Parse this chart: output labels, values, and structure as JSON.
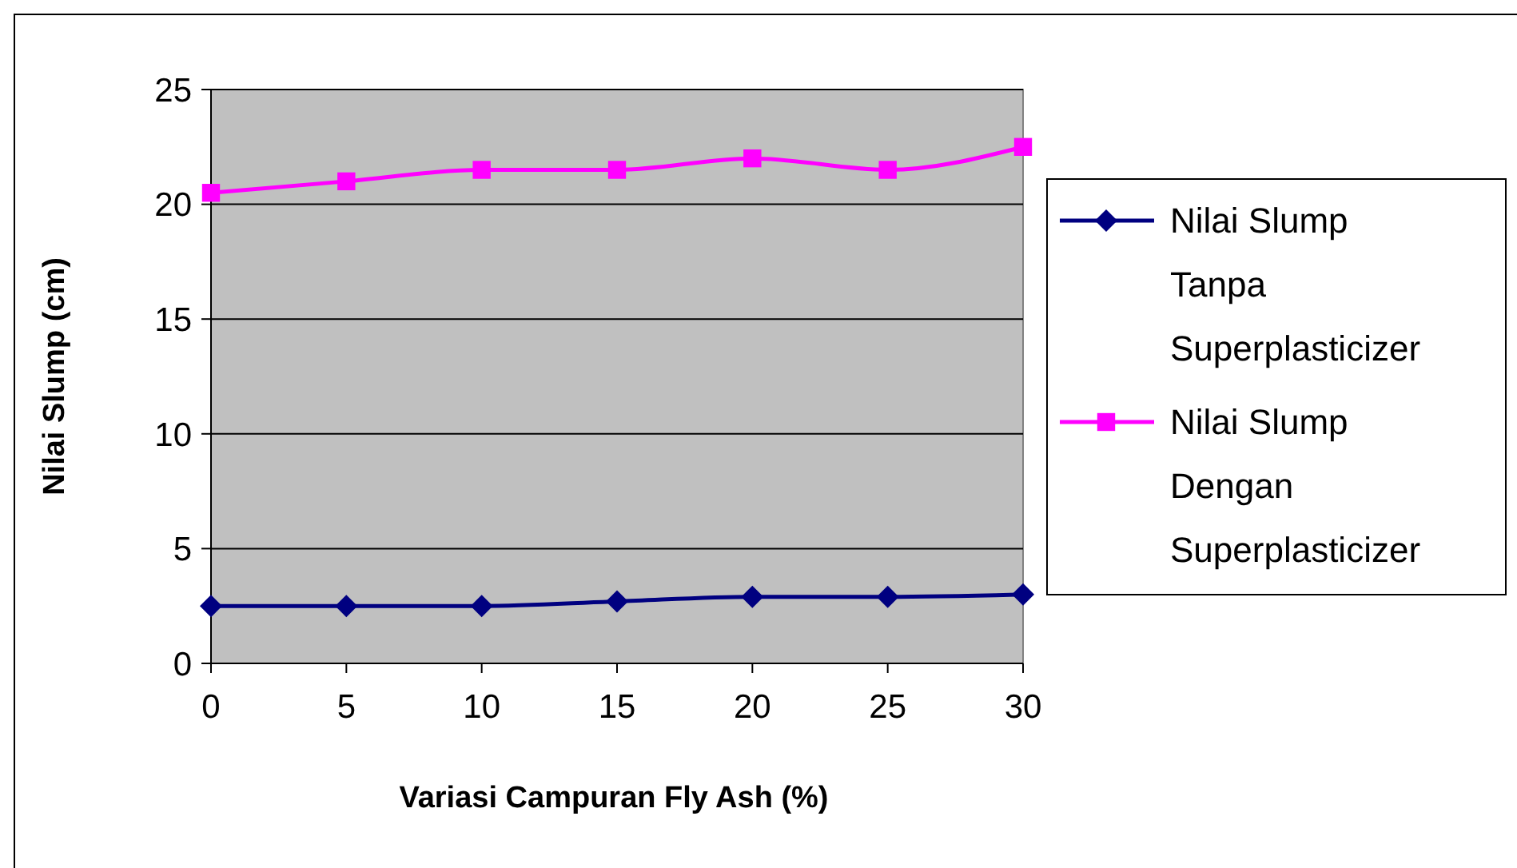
{
  "chart_data": {
    "type": "line",
    "xlabel": "Variasi Campuran Fly Ash (%)",
    "ylabel": "Nilai Slump (cm)",
    "x": [
      0,
      5,
      10,
      15,
      20,
      25,
      30
    ],
    "xlim": [
      0,
      30
    ],
    "xticks": [
      0,
      5,
      10,
      15,
      20,
      25,
      30
    ],
    "ylim": [
      0,
      25
    ],
    "yticks": [
      0,
      5,
      10,
      15,
      20,
      25
    ],
    "grid": "y",
    "legend": "right",
    "series": [
      {
        "name": "Nilai Slump Tanpa Superplasticizer",
        "color": "#000080",
        "marker": "diamond",
        "values": [
          2.5,
          2.5,
          2.5,
          2.7,
          2.9,
          2.9,
          3
        ]
      },
      {
        "name": "Nilai Slump Dengan Superplasticizer",
        "color": "#ff00ff",
        "marker": "square",
        "values": [
          20.5,
          21,
          21.5,
          21.5,
          22,
          21.5,
          22.5
        ]
      }
    ]
  }
}
